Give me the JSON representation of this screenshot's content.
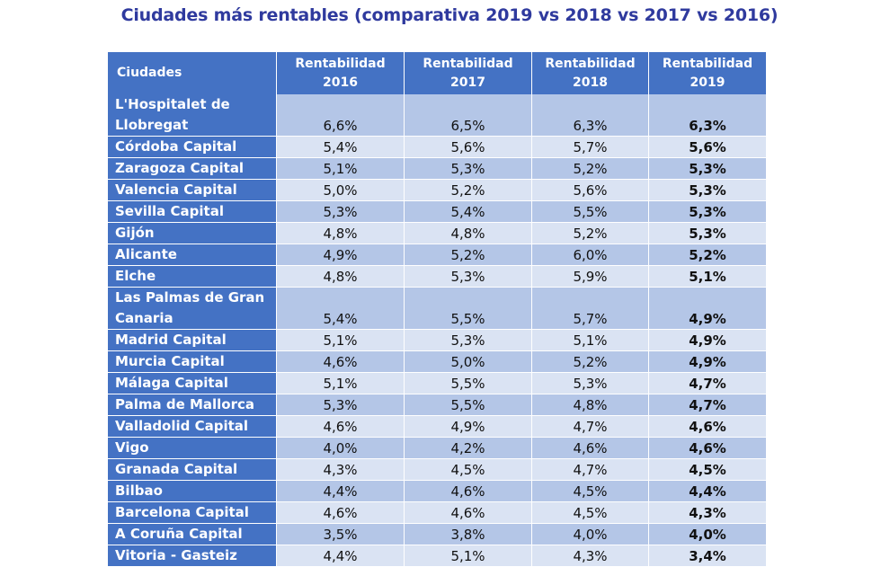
{
  "chart_data": {
    "type": "table",
    "title": "Ciudades más rentables (comparativa 2019 vs 2018 vs 2017 vs 2016)",
    "columns": [
      "Ciudades",
      "Rentabilidad 2016",
      "Rentabilidad 2017",
      "Rentabilidad 2018",
      "Rentabilidad 2019"
    ],
    "rows": [
      {
        "city": "L'Hospitalet de Llobregat",
        "values": [
          "6,6%",
          "6,5%",
          "6,3%",
          "6,3%"
        ]
      },
      {
        "city": "Córdoba Capital",
        "values": [
          "5,4%",
          "5,6%",
          "5,7%",
          "5,6%"
        ]
      },
      {
        "city": "Zaragoza Capital",
        "values": [
          "5,1%",
          "5,3%",
          "5,2%",
          "5,3%"
        ]
      },
      {
        "city": "Valencia Capital",
        "values": [
          "5,0%",
          "5,2%",
          "5,6%",
          "5,3%"
        ]
      },
      {
        "city": "Sevilla Capital",
        "values": [
          "5,3%",
          "5,4%",
          "5,5%",
          "5,3%"
        ]
      },
      {
        "city": "Gijón",
        "values": [
          "4,8%",
          "4,8%",
          "5,2%",
          "5,3%"
        ]
      },
      {
        "city": "Alicante",
        "values": [
          "4,9%",
          "5,2%",
          "6,0%",
          "5,2%"
        ]
      },
      {
        "city": "Elche",
        "values": [
          "4,8%",
          "5,3%",
          "5,9%",
          "5,1%"
        ]
      },
      {
        "city": "Las Palmas de Gran Canaria",
        "values": [
          "5,4%",
          "5,5%",
          "5,7%",
          "4,9%"
        ]
      },
      {
        "city": "Madrid Capital",
        "values": [
          "5,1%",
          "5,3%",
          "5,1%",
          "4,9%"
        ]
      },
      {
        "city": "Murcia Capital",
        "values": [
          "4,6%",
          "5,0%",
          "5,2%",
          "4,9%"
        ]
      },
      {
        "city": "Málaga Capital",
        "values": [
          "5,1%",
          "5,5%",
          "5,3%",
          "4,7%"
        ]
      },
      {
        "city": " Palma de Mallorca",
        "values": [
          "5,3%",
          "5,5%",
          "4,8%",
          "4,7%"
        ]
      },
      {
        "city": "Valladolid Capital",
        "values": [
          "4,6%",
          "4,9%",
          "4,7%",
          "4,6%"
        ]
      },
      {
        "city": "Vigo",
        "values": [
          "4,0%",
          "4,2%",
          "4,6%",
          "4,6%"
        ]
      },
      {
        "city": "Granada Capital",
        "values": [
          "4,3%",
          "4,5%",
          "4,7%",
          "4,5%"
        ]
      },
      {
        "city": "Bilbao",
        "values": [
          "4,4%",
          "4,6%",
          "4,5%",
          "4,4%"
        ]
      },
      {
        "city": "Barcelona Capital",
        "values": [
          "4,6%",
          "4,6%",
          "4,5%",
          "4,3%"
        ]
      },
      {
        "city": "A Coruña Capital",
        "values": [
          "3,5%",
          "3,8%",
          "4,0%",
          "4,0%"
        ]
      },
      {
        "city": "Vitoria - Gasteiz",
        "values": [
          "4,4%",
          "5,1%",
          "4,3%",
          "3,4%"
        ]
      }
    ]
  },
  "colors": {
    "title": "#2f3a9e",
    "header_bg": "#4472c4",
    "row_dark": "#b4c6e7",
    "row_light": "#dae3f3"
  }
}
